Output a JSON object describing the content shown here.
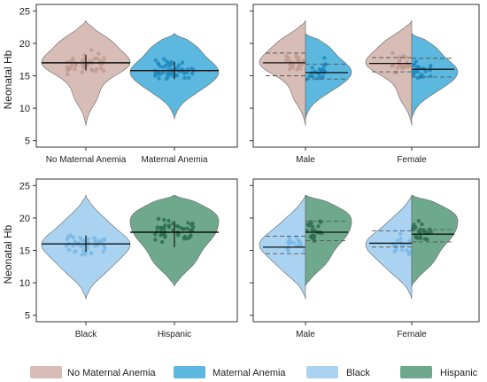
{
  "colors": {
    "no_maternal_anemia": "#d7bdb6",
    "no_maternal_anemia_dot": "#bf9a90",
    "maternal_anemia": "#5cb8de",
    "maternal_anemia_dot": "#1f88bf",
    "black": "#a9d3f0",
    "black_dot": "#7ab8e6",
    "hispanic": "#6ea98d",
    "hispanic_dot": "#2d6e52"
  },
  "ylabel": "Neonatal Hb",
  "yticks": [
    5,
    10,
    15,
    20,
    25
  ],
  "legend": {
    "items": [
      {
        "label": "No Maternal Anemia",
        "color_key": "no_maternal_anemia"
      },
      {
        "label": "Maternal Anemia",
        "color_key": "maternal_anemia"
      },
      {
        "label": "Black",
        "color_key": "black"
      },
      {
        "label": "Hispanic",
        "color_key": "hispanic"
      }
    ]
  },
  "chart_data": [
    {
      "type": "violin",
      "panel": "top-left",
      "ylim": [
        4,
        26
      ],
      "categories": [
        "No Maternal Anemia",
        "Maternal Anemia"
      ],
      "series": [
        {
          "group": "No Maternal Anemia",
          "color_key": "no_maternal_anemia",
          "median": 17.0,
          "q1": 15.8,
          "q3": 18.2,
          "min": 7.3,
          "max": 23.5
        },
        {
          "group": "Maternal Anemia",
          "color_key": "maternal_anemia",
          "median": 15.8,
          "q1": 14.5,
          "q3": 17.2,
          "min": 8.3,
          "max": 21.5
        }
      ]
    },
    {
      "type": "split-violin",
      "panel": "top-right",
      "ylim": [
        4,
        26
      ],
      "categories": [
        "Male",
        "Female"
      ],
      "series": [
        {
          "group": "No Maternal Anemia",
          "color_key": "no_maternal_anemia",
          "values": [
            {
              "category": "Male",
              "median": 17.0,
              "q1": 15.0,
              "q3": 18.5
            },
            {
              "category": "Female",
              "median": 16.9,
              "q1": 15.6,
              "q3": 17.8
            }
          ]
        },
        {
          "group": "Maternal Anemia",
          "color_key": "maternal_anemia",
          "values": [
            {
              "category": "Male",
              "median": 15.5,
              "q1": 14.5,
              "q3": 16.8
            },
            {
              "category": "Female",
              "median": 16.0,
              "q1": 14.8,
              "q3": 17.7
            }
          ]
        }
      ]
    },
    {
      "type": "violin",
      "panel": "bottom-left",
      "ylim": [
        4,
        26
      ],
      "categories": [
        "Black",
        "Hispanic"
      ],
      "series": [
        {
          "group": "Black",
          "color_key": "black",
          "median": 16.0,
          "q1": 14.8,
          "q3": 17.3,
          "min": 7.5,
          "max": 23.5
        },
        {
          "group": "Hispanic",
          "color_key": "hispanic",
          "median": 17.8,
          "q1": 15.5,
          "q3": 19.5,
          "min": 9.5,
          "max": 23.5
        }
      ]
    },
    {
      "type": "split-violin",
      "panel": "bottom-right",
      "ylim": [
        4,
        26
      ],
      "categories": [
        "Male",
        "Female"
      ],
      "series": [
        {
          "group": "Black",
          "color_key": "black",
          "values": [
            {
              "category": "Male",
              "median": 15.5,
              "q1": 14.5,
              "q3": 17.2
            },
            {
              "category": "Female",
              "median": 16.1,
              "q1": 15.5,
              "q3": 18.0
            }
          ]
        },
        {
          "group": "Hispanic",
          "color_key": "hispanic",
          "values": [
            {
              "category": "Male",
              "median": 17.8,
              "q1": 16.5,
              "q3": 19.5
            },
            {
              "category": "Female",
              "median": 17.5,
              "q1": 16.3,
              "q3": 18.2
            }
          ]
        }
      ]
    }
  ]
}
